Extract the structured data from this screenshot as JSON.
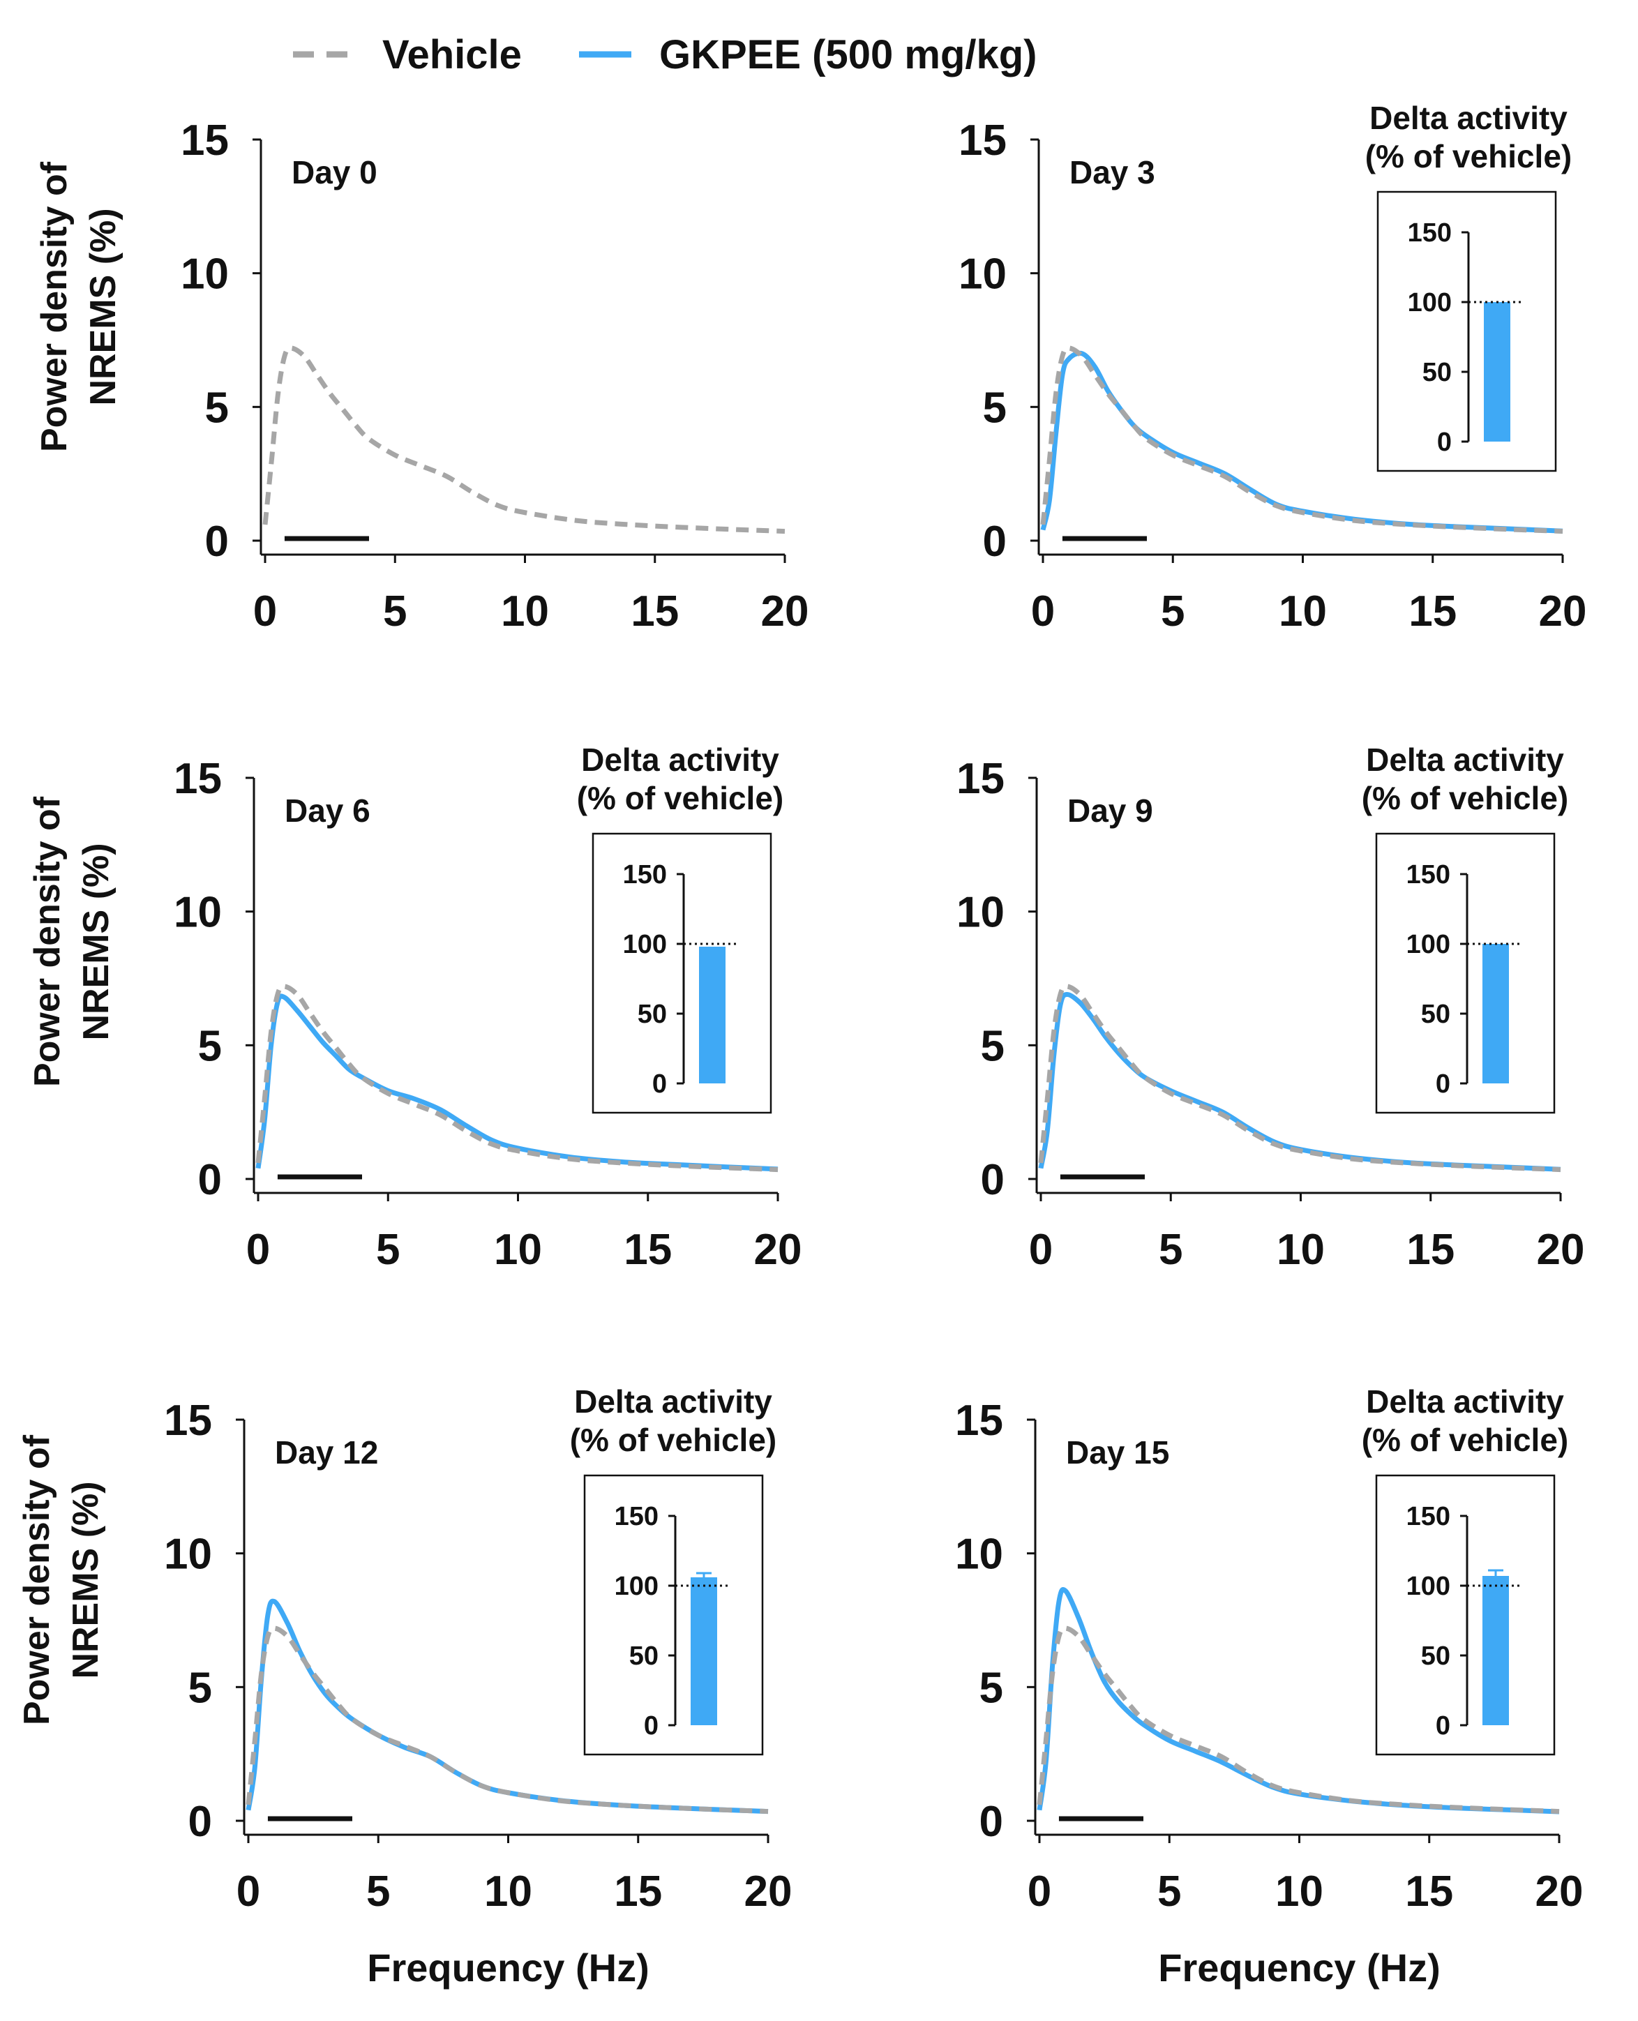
{
  "legend": {
    "vehicle": "Vehicle",
    "gkpee": "GKPEE (500 mg/kg)",
    "vehicle_color": "#a6a6a6",
    "gkpee_color": "#3fa9f5"
  },
  "axis_labels": {
    "ylabel_line1": "Power density of",
    "ylabel_line2": "NREMS (%)",
    "xlabel": "Frequency (Hz)"
  },
  "inset_title": {
    "line1": "Delta activity",
    "line2": "(% of vehicle)"
  },
  "chart_data": [
    {
      "type": "line",
      "title": "Day 0",
      "xlim": [
        0,
        20
      ],
      "ylim": [
        0,
        15
      ],
      "xticks": [
        "0",
        "5",
        "10",
        "15",
        "20"
      ],
      "yticks": [
        "0",
        "5",
        "10",
        "15"
      ],
      "delta_band_hz": [
        0.75,
        4
      ],
      "x": [
        0,
        0.25,
        0.5,
        0.75,
        1,
        1.5,
        2,
        2.5,
        3,
        3.5,
        4,
        5,
        6,
        7,
        8,
        9,
        10,
        12,
        14,
        16,
        18,
        20
      ],
      "series": [
        {
          "name": "Vehicle",
          "values": [
            0.6,
            3.0,
            5.5,
            6.9,
            7.2,
            6.9,
            6.2,
            5.5,
            4.9,
            4.3,
            3.8,
            3.2,
            2.8,
            2.4,
            1.8,
            1.3,
            1.05,
            0.75,
            0.6,
            0.5,
            0.42,
            0.35
          ]
        }
      ],
      "inset": null
    },
    {
      "type": "line",
      "title": "Day 3",
      "xlim": [
        0,
        20
      ],
      "ylim": [
        0,
        15
      ],
      "xticks": [
        "0",
        "5",
        "10",
        "15",
        "20"
      ],
      "yticks": [
        "0",
        "5",
        "10",
        "15"
      ],
      "delta_band_hz": [
        0.75,
        4
      ],
      "x": [
        0,
        0.25,
        0.5,
        0.75,
        1,
        1.5,
        2,
        2.5,
        3,
        3.5,
        4,
        5,
        6,
        7,
        8,
        9,
        10,
        12,
        14,
        16,
        18,
        20
      ],
      "series": [
        {
          "name": "Vehicle",
          "values": [
            0.6,
            3.0,
            5.5,
            6.9,
            7.2,
            6.9,
            6.2,
            5.5,
            4.9,
            4.3,
            3.8,
            3.2,
            2.8,
            2.4,
            1.8,
            1.3,
            1.05,
            0.75,
            0.6,
            0.5,
            0.42,
            0.35
          ]
        },
        {
          "name": "GKPEE (500 mg/kg)",
          "values": [
            0.4,
            1.5,
            4.0,
            6.2,
            6.8,
            7.0,
            6.5,
            5.6,
            4.9,
            4.3,
            3.9,
            3.3,
            2.9,
            2.5,
            1.9,
            1.35,
            1.1,
            0.8,
            0.62,
            0.52,
            0.44,
            0.36
          ]
        }
      ],
      "inset": {
        "yticks": [
          "0",
          "50",
          "100",
          "150"
        ],
        "ylim": [
          0,
          150
        ],
        "reference": 100,
        "value": 100,
        "error": 0
      }
    },
    {
      "type": "line",
      "title": "Day 6",
      "xlim": [
        0,
        20
      ],
      "ylim": [
        0,
        15
      ],
      "xticks": [
        "0",
        "5",
        "10",
        "15",
        "20"
      ],
      "yticks": [
        "0",
        "5",
        "10",
        "15"
      ],
      "delta_band_hz": [
        0.75,
        4
      ],
      "x": [
        0,
        0.25,
        0.5,
        0.75,
        1,
        1.5,
        2,
        2.5,
        3,
        3.5,
        4,
        5,
        6,
        7,
        8,
        9,
        10,
        12,
        14,
        16,
        18,
        20
      ],
      "series": [
        {
          "name": "Vehicle",
          "values": [
            0.6,
            3.0,
            5.5,
            6.9,
            7.2,
            6.9,
            6.2,
            5.5,
            4.9,
            4.3,
            3.8,
            3.2,
            2.8,
            2.4,
            1.8,
            1.3,
            1.05,
            0.75,
            0.6,
            0.5,
            0.42,
            0.35
          ]
        },
        {
          "name": "GKPEE (500 mg/kg)",
          "values": [
            0.4,
            2.2,
            5.0,
            6.6,
            6.8,
            6.3,
            5.7,
            5.1,
            4.6,
            4.1,
            3.8,
            3.3,
            3.0,
            2.6,
            2.0,
            1.45,
            1.15,
            0.82,
            0.64,
            0.54,
            0.45,
            0.37
          ]
        }
      ],
      "inset": {
        "yticks": [
          "0",
          "50",
          "100",
          "150"
        ],
        "ylim": [
          0,
          150
        ],
        "reference": 100,
        "value": 98,
        "error": 0
      }
    },
    {
      "type": "line",
      "title": "Day 9",
      "xlim": [
        0,
        20
      ],
      "ylim": [
        0,
        15
      ],
      "xticks": [
        "0",
        "5",
        "10",
        "15",
        "20"
      ],
      "yticks": [
        "0",
        "5",
        "10",
        "15"
      ],
      "delta_band_hz": [
        0.75,
        4
      ],
      "x": [
        0,
        0.25,
        0.5,
        0.75,
        1,
        1.5,
        2,
        2.5,
        3,
        3.5,
        4,
        5,
        6,
        7,
        8,
        9,
        10,
        12,
        14,
        16,
        18,
        20
      ],
      "series": [
        {
          "name": "Vehicle",
          "values": [
            0.6,
            3.0,
            5.5,
            6.9,
            7.2,
            6.9,
            6.2,
            5.5,
            4.9,
            4.3,
            3.8,
            3.2,
            2.8,
            2.4,
            1.8,
            1.3,
            1.05,
            0.75,
            0.6,
            0.5,
            0.42,
            0.35
          ]
        },
        {
          "name": "GKPEE (500 mg/kg)",
          "values": [
            0.4,
            1.8,
            4.6,
            6.5,
            6.9,
            6.6,
            6.0,
            5.3,
            4.7,
            4.2,
            3.8,
            3.3,
            2.9,
            2.5,
            1.9,
            1.38,
            1.1,
            0.8,
            0.62,
            0.52,
            0.44,
            0.36
          ]
        }
      ],
      "inset": {
        "yticks": [
          "0",
          "50",
          "100",
          "150"
        ],
        "ylim": [
          0,
          150
        ],
        "reference": 100,
        "value": 100,
        "error": 0
      }
    },
    {
      "type": "line",
      "title": "Day 12",
      "xlim": [
        0,
        20
      ],
      "ylim": [
        0,
        15
      ],
      "xticks": [
        "0",
        "5",
        "10",
        "15",
        "20"
      ],
      "yticks": [
        "0",
        "5",
        "10",
        "15"
      ],
      "delta_band_hz": [
        0.75,
        4
      ],
      "x": [
        0,
        0.25,
        0.5,
        0.75,
        1,
        1.5,
        2,
        2.5,
        3,
        3.5,
        4,
        5,
        6,
        7,
        8,
        9,
        10,
        12,
        14,
        16,
        18,
        20
      ],
      "series": [
        {
          "name": "Vehicle",
          "values": [
            0.6,
            3.0,
            5.5,
            6.9,
            7.2,
            6.9,
            6.2,
            5.5,
            4.9,
            4.3,
            3.8,
            3.2,
            2.8,
            2.4,
            1.8,
            1.3,
            1.05,
            0.75,
            0.6,
            0.5,
            0.42,
            0.35
          ]
        },
        {
          "name": "GKPEE (500 mg/kg)",
          "values": [
            0.4,
            2.0,
            5.3,
            7.7,
            8.2,
            7.4,
            6.3,
            5.4,
            4.7,
            4.2,
            3.8,
            3.2,
            2.75,
            2.4,
            1.8,
            1.3,
            1.05,
            0.76,
            0.6,
            0.5,
            0.42,
            0.35
          ]
        }
      ],
      "inset": {
        "yticks": [
          "0",
          "50",
          "100",
          "150"
        ],
        "ylim": [
          0,
          150
        ],
        "reference": 100,
        "value": 106,
        "error": 3
      }
    },
    {
      "type": "line",
      "title": "Day 15",
      "xlim": [
        0,
        20
      ],
      "ylim": [
        0,
        15
      ],
      "xticks": [
        "0",
        "5",
        "10",
        "15",
        "20"
      ],
      "yticks": [
        "0",
        "5",
        "10",
        "15"
      ],
      "delta_band_hz": [
        0.75,
        4
      ],
      "x": [
        0,
        0.25,
        0.5,
        0.75,
        1,
        1.5,
        2,
        2.5,
        3,
        3.5,
        4,
        5,
        6,
        7,
        8,
        9,
        10,
        12,
        14,
        16,
        18,
        20
      ],
      "series": [
        {
          "name": "Vehicle",
          "values": [
            0.6,
            3.0,
            5.5,
            6.9,
            7.2,
            6.9,
            6.2,
            5.5,
            4.9,
            4.3,
            3.8,
            3.2,
            2.8,
            2.4,
            1.8,
            1.3,
            1.05,
            0.75,
            0.6,
            0.5,
            0.42,
            0.35
          ]
        },
        {
          "name": "GKPEE (500 mg/kg)",
          "values": [
            0.4,
            2.2,
            5.8,
            8.2,
            8.6,
            7.6,
            6.3,
            5.2,
            4.5,
            4.0,
            3.6,
            3.0,
            2.6,
            2.2,
            1.7,
            1.25,
            1.0,
            0.74,
            0.58,
            0.48,
            0.41,
            0.34
          ]
        }
      ],
      "inset": {
        "yticks": [
          "0",
          "50",
          "100",
          "150"
        ],
        "ylim": [
          0,
          150
        ],
        "reference": 100,
        "value": 107,
        "error": 4
      }
    }
  ]
}
